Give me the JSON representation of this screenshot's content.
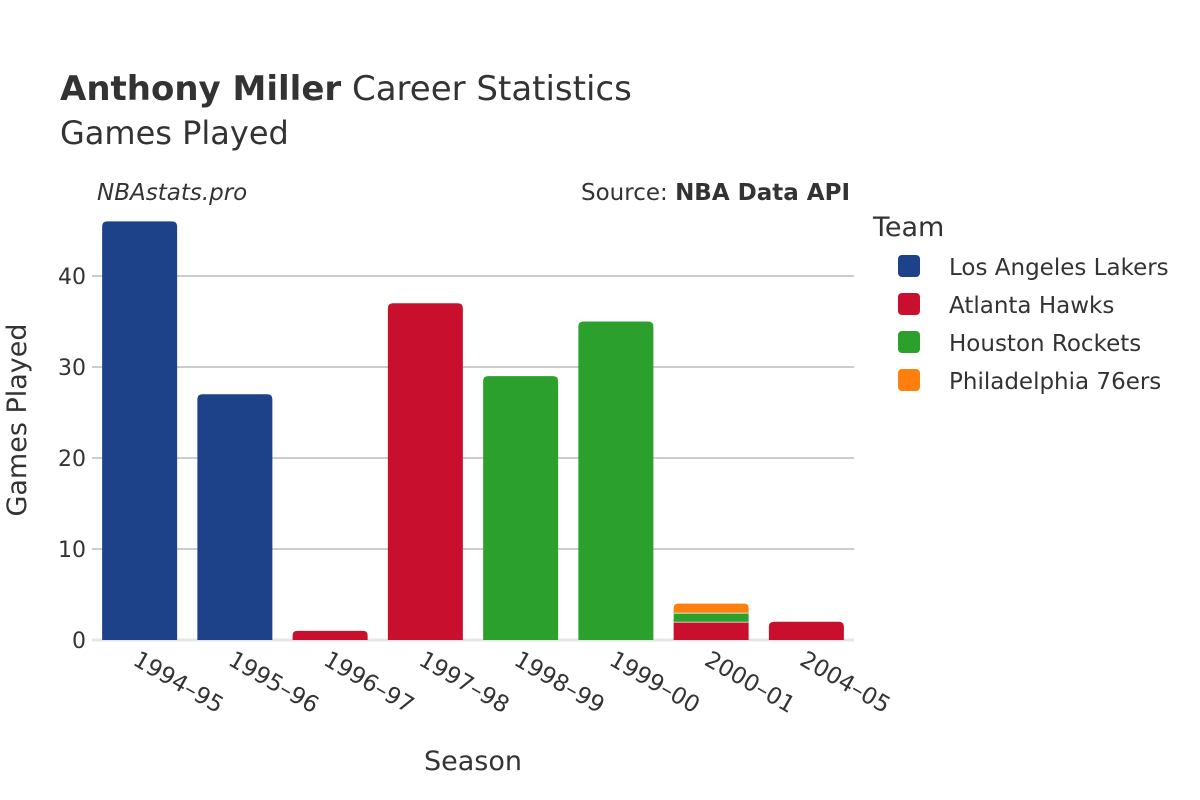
{
  "title": {
    "player": "Anthony Miller",
    "rest": " Career Statistics",
    "subtitle": "Games Played"
  },
  "credit": {
    "site": "NBAstats.pro",
    "source_prefix": "Source: ",
    "source_name": "NBA Data API"
  },
  "legend": {
    "title": "Team",
    "items": [
      {
        "name": "Los Angeles Lakers",
        "color": "#1d428a"
      },
      {
        "name": "Atlanta Hawks",
        "color": "#c8102e"
      },
      {
        "name": "Houston Rockets",
        "color": "#2ca02c"
      },
      {
        "name": "Philadelphia 76ers",
        "color": "#ff7f0e"
      }
    ]
  },
  "chart_data": {
    "type": "bar",
    "stacked": true,
    "title": "Anthony Miller Career Statistics",
    "subtitle": "Games Played",
    "xlabel": "Season",
    "ylabel": "Games Played",
    "ylim": [
      0,
      47
    ],
    "yticks": [
      0,
      10,
      20,
      30,
      40
    ],
    "grid": true,
    "legend_position": "right",
    "categories": [
      "1994–95",
      "1995–96",
      "1996–97",
      "1997–98",
      "1998–99",
      "1999–00",
      "2000–01",
      "2004–05"
    ],
    "series": [
      {
        "name": "Los Angeles Lakers",
        "color": "#1d428a",
        "values": [
          46,
          27,
          0,
          0,
          0,
          0,
          0,
          0
        ]
      },
      {
        "name": "Atlanta Hawks",
        "color": "#c8102e",
        "values": [
          0,
          0,
          1,
          37,
          0,
          0,
          2,
          2
        ]
      },
      {
        "name": "Houston Rockets",
        "color": "#2ca02c",
        "values": [
          0,
          0,
          0,
          0,
          29,
          35,
          1,
          0
        ]
      },
      {
        "name": "Philadelphia 76ers",
        "color": "#ff7f0e",
        "values": [
          0,
          0,
          0,
          0,
          0,
          0,
          1,
          0
        ]
      }
    ]
  }
}
